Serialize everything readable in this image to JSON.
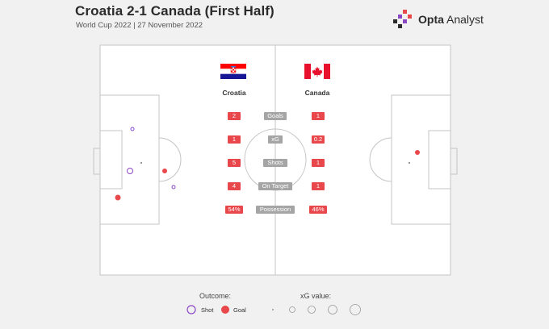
{
  "header": {
    "title": "Croatia 2-1 Canada (First Half)",
    "subtitle": "World Cup 2022 | 27 November 2022"
  },
  "brand": {
    "name_bold": "Opta",
    "name_light": " Analyst"
  },
  "teams": {
    "home": "Croatia",
    "away": "Canada"
  },
  "stats": {
    "labels": [
      "Goals",
      "xG",
      "Shots",
      "On Target",
      "Possession"
    ],
    "home": [
      "2",
      "1",
      "5",
      "4",
      "54%"
    ],
    "away": [
      "1",
      "0.2",
      "1",
      "1",
      "46%"
    ]
  },
  "legend": {
    "outcome_title": "Outcome:",
    "shot_label": "Shot",
    "goal_label": "Goal",
    "xg_title": "xG value:"
  },
  "colors": {
    "goal": "#e8474b",
    "shot": "#8a46c4",
    "stat_bg": "#e8474b",
    "label_bg": "#a5a5a5",
    "pitch_line": "#c4c4c4",
    "pitch_bg": "#ffffff"
  }
}
